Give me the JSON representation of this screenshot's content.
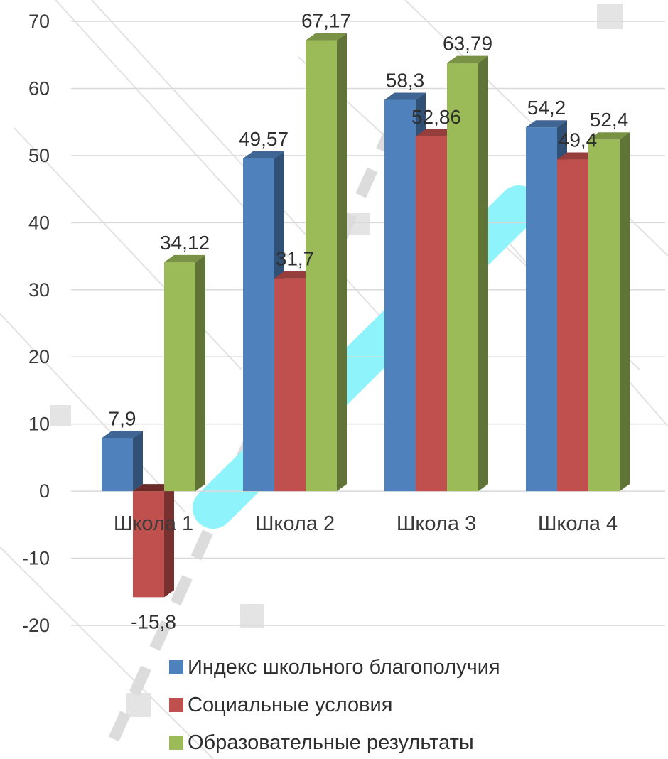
{
  "chart_data": {
    "type": "bar",
    "categories": [
      "Школа 1",
      "Школа 2",
      "Школа 3",
      "Школа 4"
    ],
    "series": [
      {
        "name": "Индекс школьного благополучия",
        "values": [
          7.9,
          49.57,
          58.3,
          54.2
        ],
        "labels": [
          "7,9",
          "49,57",
          "58,3",
          "54,2"
        ],
        "color": "#4F81BD"
      },
      {
        "name": "Социальные условия",
        "values": [
          -15.8,
          31.7,
          52.86,
          49.4
        ],
        "labels": [
          "-15,8",
          "31,7",
          "52,86",
          "49,4"
        ],
        "color": "#C0504D"
      },
      {
        "name": "Образовательные результаты",
        "values": [
          34.12,
          67.17,
          63.79,
          52.4
        ],
        "labels": [
          "34,12",
          "67,17",
          "63,79",
          "52,4"
        ],
        "color": "#9BBB59"
      }
    ],
    "yticks": [
      "70",
      "60",
      "50",
      "40",
      "30",
      "20",
      "10",
      "0",
      "-10",
      "-20"
    ],
    "ylim": [
      -20,
      70
    ],
    "grid": true,
    "legend_position": "bottom",
    "style": "3d-column",
    "title": "",
    "xlabel": "",
    "ylabel": ""
  }
}
